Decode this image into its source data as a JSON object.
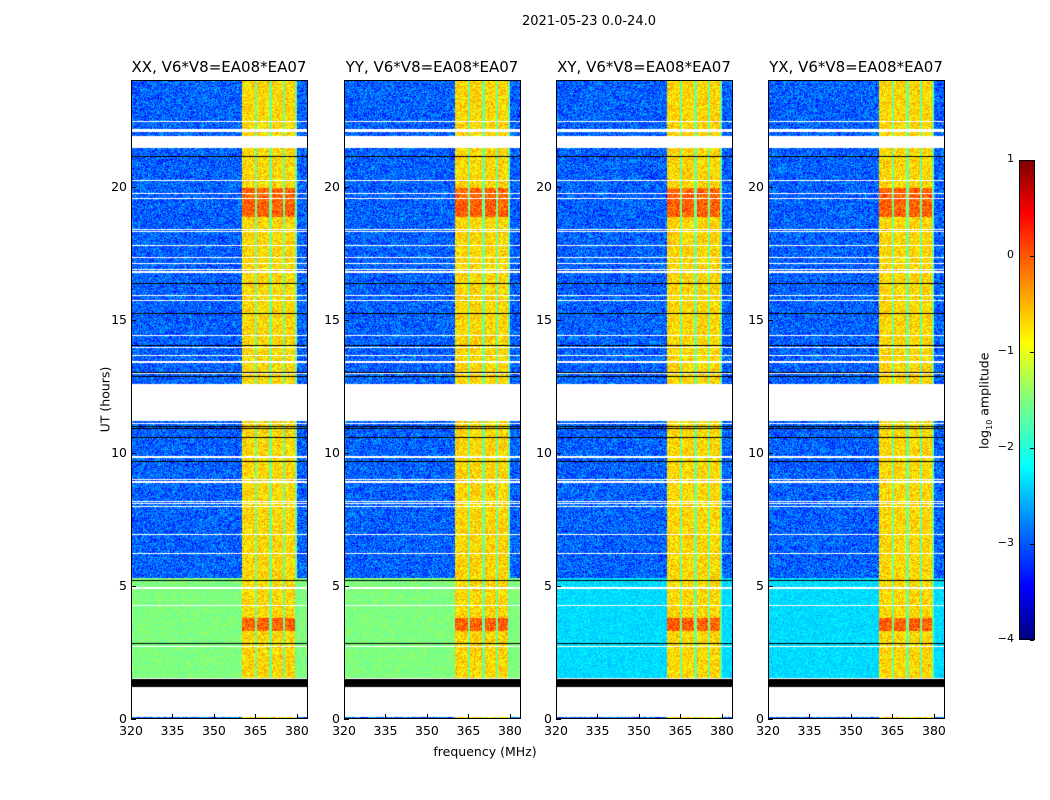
{
  "chart_data": {
    "type": "heatmap",
    "title": "2021-05-23 0.0-24.0",
    "xlabel": "frequency (MHz)",
    "ylabel": "UT (hours)",
    "xlim": [
      320,
      384
    ],
    "ylim": [
      0,
      24
    ],
    "xticks": [
      "320",
      "335",
      "350",
      "365",
      "380"
    ],
    "xtick_values": [
      320,
      335,
      350,
      365,
      380
    ],
    "yticks": [
      "0",
      "5",
      "10",
      "15",
      "20"
    ],
    "ytick_values": [
      0,
      5,
      10,
      15,
      20
    ],
    "panels": [
      {
        "title": "XX, V6*V8=EA08*EA07",
        "low_band_level": -1.5
      },
      {
        "title": "YY, V6*V8=EA08*EA07",
        "low_band_level": -1.5
      },
      {
        "title": "XY, V6*V8=EA08*EA07",
        "low_band_level": -2.3
      },
      {
        "title": "YX, V6*V8=EA08*EA07",
        "low_band_level": -2.3
      }
    ],
    "background_level": -2.9,
    "bright_band_mhz": [
      360,
      380
    ],
    "bright_band_level": -0.7,
    "flagged_hours_white": [
      [
        0.05,
        1.2
      ],
      [
        11.2,
        12.6
      ],
      [
        21.5,
        21.9
      ]
    ],
    "flagged_hours_black": [
      [
        1.2,
        1.5
      ]
    ],
    "hot_hours": [
      [
        18.9,
        20.0
      ],
      [
        3.3,
        3.8
      ]
    ],
    "colorbar": {
      "label_prefix": "log",
      "label_sub": "10",
      "label_suffix": " amplitude",
      "ticks": [
        "1",
        "0",
        "−1",
        "−2",
        "−3",
        "−4"
      ],
      "tick_values": [
        1,
        0,
        -1,
        -2,
        -3,
        -4
      ],
      "range": [
        -4,
        1
      ],
      "colormap": "jet"
    }
  }
}
